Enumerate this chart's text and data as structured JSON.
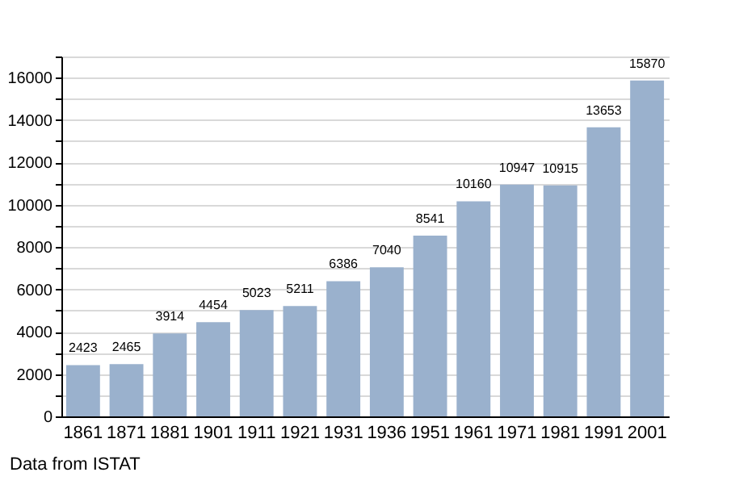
{
  "chart_data": {
    "type": "bar",
    "categories": [
      "1861",
      "1871",
      "1881",
      "1901",
      "1911",
      "1921",
      "1931",
      "1936",
      "1951",
      "1961",
      "1971",
      "1981",
      "1991",
      "2001"
    ],
    "values": [
      2423,
      2465,
      3914,
      4454,
      5023,
      5211,
      6386,
      7040,
      8541,
      10160,
      10947,
      10915,
      13653,
      15870
    ],
    "color": "#9ab1cd",
    "ylim": [
      0,
      17000
    ],
    "yticks": [
      0,
      {
        "value": 1000,
        "label": null
      },
      2000,
      {
        "value": 3000,
        "label": null
      },
      4000,
      {
        "value": 5000,
        "label": null
      },
      6000,
      {
        "value": 7000,
        "label": null
      },
      8000,
      {
        "value": 9000,
        "label": null
      },
      10000,
      {
        "value": 11000,
        "label": null
      },
      12000,
      {
        "value": 13000,
        "label": null
      },
      14000,
      {
        "value": 15000,
        "label": null
      },
      16000,
      {
        "value": 17000,
        "label": null
      }
    ],
    "grid": "y",
    "data_labels": true,
    "annotations": [
      "Data from ISTAT"
    ]
  }
}
